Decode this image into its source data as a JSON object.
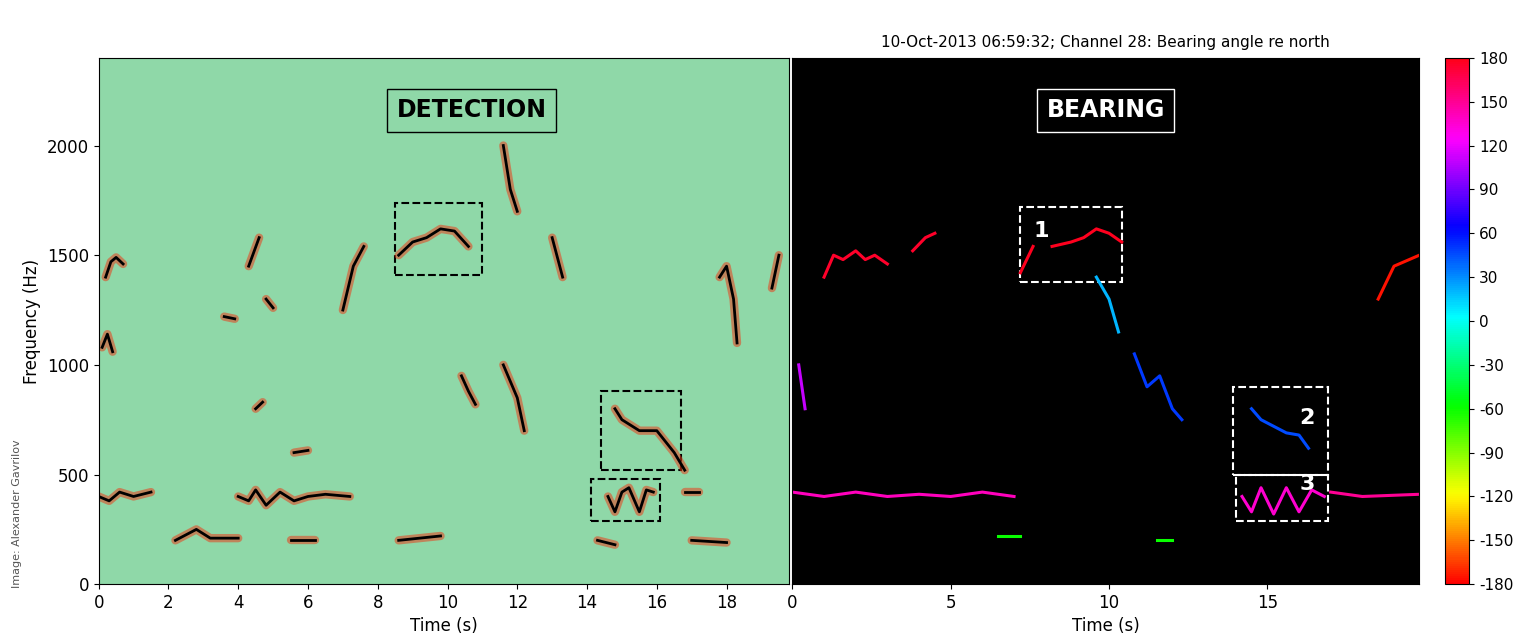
{
  "credit": "Image: Alexander Gavrilov",
  "chart_data": [
    {
      "type": "spectrogram",
      "label": "DETECTION",
      "xlabel": "Time (s)",
      "ylabel": "Frequency (Hz)",
      "xlim": [
        0,
        19.8
      ],
      "ylim": [
        0,
        2400
      ],
      "xticks": [
        0,
        2,
        4,
        6,
        8,
        10,
        12,
        14,
        16,
        18
      ],
      "yticks": [
        0,
        500,
        1000,
        1500,
        2000
      ],
      "color": "black",
      "contours": [
        {
          "x": [
            0.2,
            0.35,
            0.5,
            0.7
          ],
          "y": [
            1400,
            1470,
            1490,
            1460
          ]
        },
        {
          "x": [
            0.1,
            0.25,
            0.4
          ],
          "y": [
            1080,
            1140,
            1060
          ]
        },
        {
          "x": [
            0,
            0.3,
            0.6,
            1.0,
            1.5
          ],
          "y": [
            400,
            380,
            420,
            400,
            420
          ]
        },
        {
          "x": [
            2.2,
            2.8,
            3.2,
            4.0
          ],
          "y": [
            200,
            250,
            210,
            210
          ]
        },
        {
          "x": [
            4.0,
            4.3,
            4.5,
            4.8,
            5.2,
            5.6,
            6.0,
            6.5,
            7.2
          ],
          "y": [
            400,
            380,
            430,
            360,
            420,
            380,
            400,
            410,
            400
          ]
        },
        {
          "x": [
            4.3,
            4.6
          ],
          "y": [
            1450,
            1580
          ]
        },
        {
          "x": [
            4.5,
            4.7
          ],
          "y": [
            800,
            830
          ]
        },
        {
          "x": [
            4.8,
            5.0
          ],
          "y": [
            1300,
            1260
          ]
        },
        {
          "x": [
            3.6,
            3.9
          ],
          "y": [
            1220,
            1210
          ]
        },
        {
          "x": [
            5.6,
            6.0
          ],
          "y": [
            600,
            610
          ]
        },
        {
          "x": [
            7.0,
            7.3,
            7.6
          ],
          "y": [
            1250,
            1450,
            1540
          ]
        },
        {
          "x": [
            8.6,
            9.0,
            9.4,
            9.8,
            10.2,
            10.6
          ],
          "y": [
            1500,
            1560,
            1580,
            1620,
            1610,
            1540
          ]
        },
        {
          "x": [
            10.4,
            10.6,
            10.8
          ],
          "y": [
            950,
            880,
            820
          ]
        },
        {
          "x": [
            11.6,
            12.0,
            12.2
          ],
          "y": [
            1000,
            850,
            700
          ]
        },
        {
          "x": [
            11.6,
            11.8,
            12.0
          ],
          "y": [
            2000,
            1800,
            1700
          ]
        },
        {
          "x": [
            13.0,
            13.3
          ],
          "y": [
            1580,
            1400
          ]
        },
        {
          "x": [
            14.8,
            15.0,
            15.5,
            16.0,
            16.5,
            16.8
          ],
          "y": [
            800,
            750,
            700,
            700,
            600,
            520
          ]
        },
        {
          "x": [
            14.6,
            14.8,
            15.0,
            15.2,
            15.5,
            15.7,
            15.9
          ],
          "y": [
            400,
            330,
            420,
            440,
            330,
            430,
            420
          ]
        },
        {
          "x": [
            17.8,
            18.0,
            18.2,
            18.3
          ],
          "y": [
            1400,
            1450,
            1300,
            1100
          ]
        },
        {
          "x": [
            19.3,
            19.5
          ],
          "y": [
            1350,
            1500
          ]
        },
        {
          "x": [
            16.8,
            17.2
          ],
          "y": [
            420,
            420
          ]
        },
        {
          "x": [
            5.5,
            6.2
          ],
          "y": [
            200,
            200
          ]
        },
        {
          "x": [
            8.6,
            9.8
          ],
          "y": [
            200,
            220
          ]
        },
        {
          "x": [
            14.3,
            14.8
          ],
          "y": [
            200,
            180
          ]
        },
        {
          "x": [
            17.0,
            18.0
          ],
          "y": [
            200,
            190
          ]
        }
      ],
      "boxes": [
        {
          "x": [
            8.5,
            11.0
          ],
          "y": [
            1410,
            1740
          ]
        },
        {
          "x": [
            14.4,
            16.7
          ],
          "y": [
            520,
            880
          ]
        },
        {
          "x": [
            14.1,
            16.1
          ],
          "y": [
            290,
            480
          ]
        }
      ]
    },
    {
      "type": "spectrogram",
      "label": "BEARING",
      "title": "10-Oct-2013 06:59:32; Channel 28: Bearing angle re north",
      "xlabel": "Time (s)",
      "xlim": [
        0,
        19.8
      ],
      "ylim": [
        0,
        2400
      ],
      "xticks": [
        0,
        5,
        10,
        15
      ],
      "yticks": [
        0,
        500,
        1000,
        1500,
        2000
      ],
      "tick_labels": "x",
      "contours": [
        {
          "x": [
            1.0,
            1.3,
            1.6,
            2.0,
            2.3,
            2.6,
            3.0
          ],
          "y": [
            1400,
            1500,
            1480,
            1520,
            1480,
            1500,
            1460
          ],
          "bearing": 175
        },
        {
          "x": [
            3.8,
            4.2,
            4.5
          ],
          "y": [
            1520,
            1580,
            1600
          ],
          "bearing": 175
        },
        {
          "x": [
            7.2,
            7.6
          ],
          "y": [
            1420,
            1540
          ],
          "bearing": 178
        },
        {
          "x": [
            8.2,
            8.8,
            9.2,
            9.6,
            10.0,
            10.4
          ],
          "y": [
            1540,
            1560,
            1580,
            1620,
            1600,
            1560
          ],
          "bearing": 178
        },
        {
          "x": [
            9.6,
            10.0,
            10.3
          ],
          "y": [
            1400,
            1300,
            1150
          ],
          "bearing": 20
        },
        {
          "x": [
            10.8,
            11.2,
            11.6,
            12.0,
            12.3
          ],
          "y": [
            1050,
            900,
            950,
            800,
            750
          ],
          "bearing": 50
        },
        {
          "x": [
            14.5,
            14.8,
            15.2,
            15.6,
            16.0,
            16.3
          ],
          "y": [
            800,
            750,
            720,
            690,
            680,
            620
          ],
          "bearing": 45
        },
        {
          "x": [
            0,
            1,
            2,
            3,
            4,
            5,
            6,
            7
          ],
          "y": [
            420,
            400,
            420,
            400,
            410,
            400,
            420,
            400
          ],
          "bearing": 140
        },
        {
          "x": [
            14.2,
            14.5,
            14.8,
            15.2,
            15.6,
            16.0,
            16.4,
            16.8
          ],
          "y": [
            400,
            330,
            440,
            320,
            440,
            330,
            430,
            400
          ],
          "bearing": 135
        },
        {
          "x": [
            17.0,
            18.0,
            19.8
          ],
          "y": [
            420,
            400,
            410
          ],
          "bearing": 150
        },
        {
          "x": [
            18.5,
            19.0,
            19.8
          ],
          "y": [
            1300,
            1450,
            1500
          ],
          "bearing": -175
        },
        {
          "x": [
            0.2,
            0.4
          ],
          "y": [
            1000,
            800
          ],
          "bearing": 110
        },
        {
          "x": [
            11.5,
            12.0
          ],
          "y": [
            200,
            200
          ],
          "bearing": -60
        },
        {
          "x": [
            6.5,
            7.2
          ],
          "y": [
            220,
            220
          ],
          "bearing": -60
        }
      ],
      "boxes": [
        {
          "x": [
            7.2,
            10.4
          ],
          "y": [
            1380,
            1720
          ],
          "label": "1"
        },
        {
          "x": [
            13.9,
            16.9
          ],
          "y": [
            500,
            900
          ],
          "label": "2"
        },
        {
          "x": [
            14.0,
            16.9
          ],
          "y": [
            290,
            500
          ],
          "label": "3"
        }
      ],
      "colorbar": {
        "range": [
          -180,
          180
        ],
        "ticks": [
          180,
          150,
          120,
          90,
          60,
          30,
          0,
          -30,
          -60,
          -90,
          -120,
          -150,
          -180
        ]
      }
    }
  ]
}
